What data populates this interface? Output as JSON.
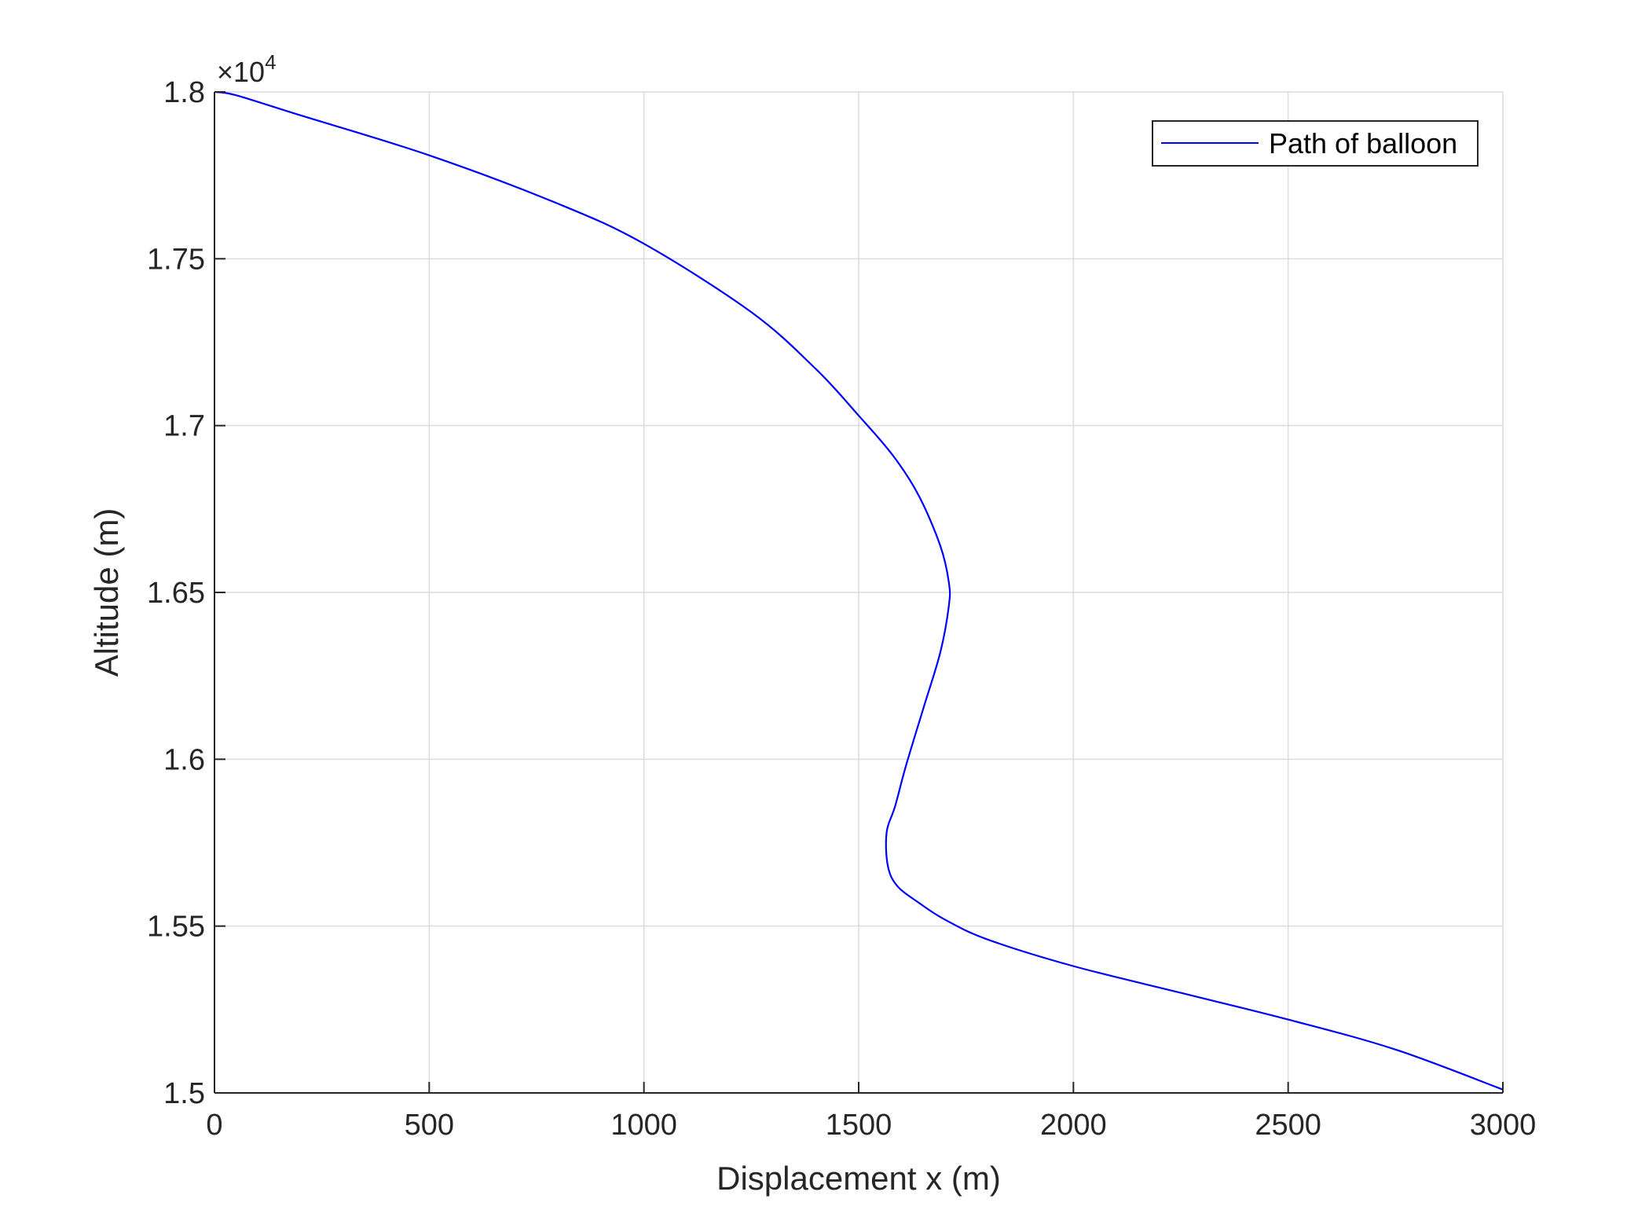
{
  "chart_data": {
    "type": "line",
    "xlabel": "Displacement x (m)",
    "ylabel": "Altitude (m)",
    "y_exponent_label": "×10",
    "y_exponent_power": "4",
    "xlim": [
      0,
      3000
    ],
    "ylim": [
      15000,
      18000
    ],
    "x_ticks": [
      0,
      500,
      1000,
      1500,
      2000,
      2500,
      3000
    ],
    "x_tick_labels": [
      "0",
      "500",
      "1000",
      "1500",
      "2000",
      "2500",
      "3000"
    ],
    "y_ticks": [
      15000,
      15500,
      16000,
      16500,
      17000,
      17500,
      18000
    ],
    "y_tick_labels": [
      "1.5",
      "1.55",
      "1.6",
      "1.65",
      "1.7",
      "1.75",
      "1.8"
    ],
    "grid": true,
    "legend_position": "top-right",
    "series": [
      {
        "name": "Path of balloon",
        "color": "#0000ff",
        "x": [
          0,
          50,
          200,
          500,
          800,
          1000,
          1250,
          1400,
          1500,
          1580,
          1640,
          1690,
          1710,
          1710,
          1690,
          1650,
          1610,
          1585,
          1565,
          1568,
          1590,
          1640,
          1700,
          1800,
          2000,
          2250,
          2500,
          2750,
          3000
        ],
        "y": [
          18000,
          17990,
          17930,
          17810,
          17665,
          17545,
          17340,
          17170,
          17030,
          16910,
          16790,
          16640,
          16530,
          16460,
          16320,
          16150,
          15980,
          15860,
          15780,
          15680,
          15620,
          15570,
          15520,
          15460,
          15380,
          15300,
          15220,
          15130,
          15010
        ]
      }
    ]
  }
}
